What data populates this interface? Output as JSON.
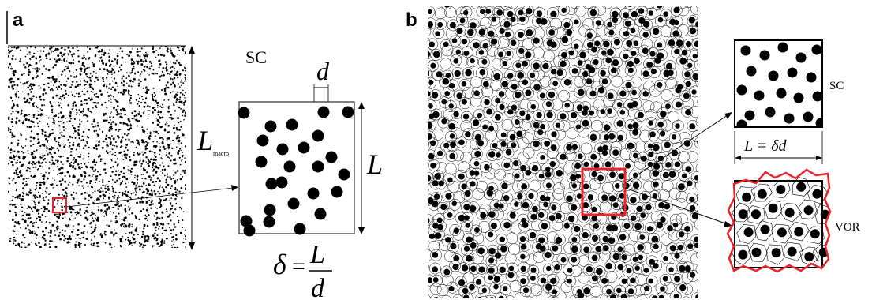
{
  "panel_a": {
    "letter": "a",
    "sc_label": "SC",
    "d_label": "d",
    "L_label": "L",
    "L_macro_main": "L",
    "L_macro_sub": "macro",
    "formula": {
      "lhs": "δ",
      "eq": "=",
      "num": "L",
      "den": "d"
    }
  },
  "panel_b": {
    "letter": "b",
    "sc_label": "SC",
    "size_label": "L = δd",
    "vor_label": "VOR"
  },
  "colors": {
    "highlight": "#e8232a",
    "ink": "#000000",
    "bg": "#ffffff"
  }
}
